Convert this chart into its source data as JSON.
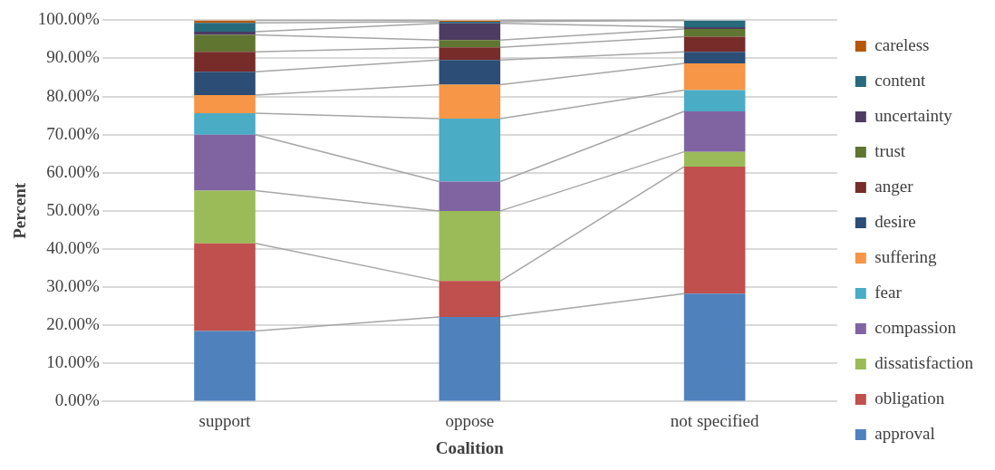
{
  "chart_data": {
    "type": "bar",
    "stacked": true,
    "xlabel": "Coalition",
    "ylabel": "Percent",
    "categories": [
      "support",
      "oppose",
      "not specified"
    ],
    "series": [
      {
        "name": "approval",
        "color": "#4f81bd",
        "values": [
          18.5,
          22.2,
          28.3
        ]
      },
      {
        "name": "obligation",
        "color": "#c0504d",
        "values": [
          23.0,
          9.4,
          33.3
        ]
      },
      {
        "name": "dissatisfaction",
        "color": "#9bbb59",
        "values": [
          13.8,
          18.4,
          3.9
        ]
      },
      {
        "name": "compassion",
        "color": "#8064a2",
        "values": [
          14.7,
          7.7,
          10.6
        ]
      },
      {
        "name": "fear",
        "color": "#4bacc6",
        "values": [
          5.6,
          16.5,
          5.6
        ]
      },
      {
        "name": "suffering",
        "color": "#f79646",
        "values": [
          4.8,
          8.9,
          7.0
        ]
      },
      {
        "name": "desire",
        "color": "#2c4d75",
        "values": [
          6.1,
          6.5,
          3.0
        ]
      },
      {
        "name": "anger",
        "color": "#772c2a",
        "values": [
          5.2,
          3.3,
          4.0
        ]
      },
      {
        "name": "trust",
        "color": "#5f7530",
        "values": [
          4.5,
          1.9,
          2.0
        ]
      },
      {
        "name": "uncertainty",
        "color": "#4d3b62",
        "values": [
          0.8,
          4.4,
          0.5
        ]
      },
      {
        "name": "content",
        "color": "#276a7c",
        "values": [
          2.3,
          0.4,
          1.8
        ]
      },
      {
        "name": "careless",
        "color": "#b65708",
        "values": [
          0.7,
          0.4,
          0
        ]
      }
    ],
    "ylim": [
      0,
      100
    ],
    "yticks": [
      {
        "value": 0,
        "label": "0.00%"
      },
      {
        "value": 10,
        "label": "10.00%"
      },
      {
        "value": 20,
        "label": "20.00%"
      },
      {
        "value": 30,
        "label": "30.00%"
      },
      {
        "value": 40,
        "label": "40.00%"
      },
      {
        "value": 50,
        "label": "50.00%"
      },
      {
        "value": 60,
        "label": "60.00%"
      },
      {
        "value": 70,
        "label": "70.00%"
      },
      {
        "value": 80,
        "label": "80.00%"
      },
      {
        "value": 90,
        "label": "90.00%"
      },
      {
        "value": 100,
        "label": "100.00%"
      }
    ],
    "grid": "y",
    "legend": "right"
  }
}
